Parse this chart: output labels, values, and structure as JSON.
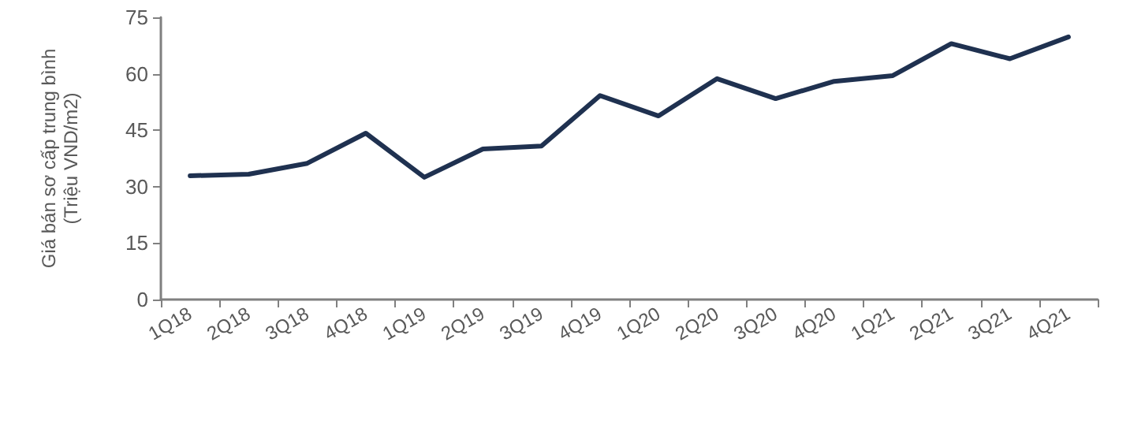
{
  "chart_data": {
    "type": "line",
    "ylabel": "Giá bán sơ cấp trung bình\n(Triệu VND/m2)",
    "categories": [
      "1Q18",
      "2Q18",
      "3Q18",
      "4Q18",
      "1Q19",
      "2Q19",
      "3Q19",
      "4Q19",
      "1Q20",
      "2Q20",
      "3Q20",
      "4Q20",
      "1Q21",
      "2Q21",
      "3Q21",
      "4Q21"
    ],
    "series": [
      {
        "color": "#1f3150",
        "values": [
          32.9,
          33.3,
          36.2,
          44.2,
          32.5,
          40,
          40.8,
          54.2,
          48.8,
          58.7,
          53.4,
          58,
          59.5,
          68,
          64,
          69.8
        ]
      }
    ],
    "ylim": [
      0,
      75
    ],
    "yticks": [
      0,
      15,
      30,
      45,
      60,
      75
    ],
    "marker": "none",
    "line_style": "solid"
  }
}
